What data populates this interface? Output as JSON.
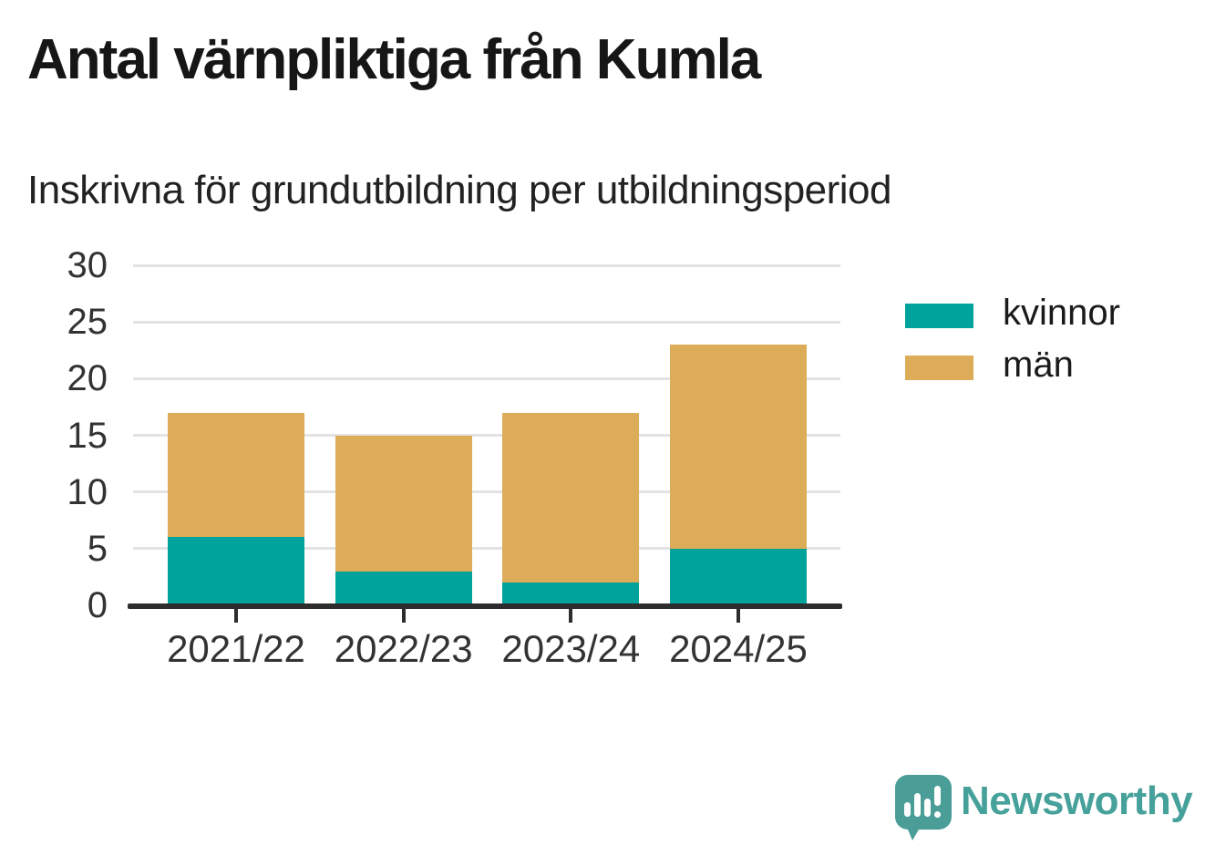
{
  "title": "Antal värnpliktiga från Kumla",
  "subtitle": "Inskrivna för grundutbildning per utbildningsperiod",
  "chart_data": {
    "type": "bar",
    "stacked": true,
    "title": "Antal värnpliktiga från Kumla",
    "subtitle": "Inskrivna för grundutbildning per utbildningsperiod",
    "categories": [
      "2021/22",
      "2022/23",
      "2023/24",
      "2024/25"
    ],
    "series": [
      {
        "name": "kvinnor",
        "color": "#00a39b",
        "values": [
          6,
          3,
          2,
          5
        ]
      },
      {
        "name": "män",
        "color": "#dcac58",
        "values": [
          11,
          12,
          15,
          18
        ]
      }
    ],
    "totals": [
      17,
      15,
      17,
      23
    ],
    "xlabel": "",
    "ylabel": "",
    "ylim": [
      0,
      30
    ],
    "yticks": [
      0,
      5,
      10,
      15,
      20,
      25,
      30
    ],
    "grid": true,
    "legend_position": "right"
  },
  "branding": {
    "name": "Newsworthy",
    "logo_icon": "bar-chart-speech-bubble-icon",
    "color": "#45a19a",
    "icon_color": "#4b9e98"
  },
  "colors": {
    "kvinnor": "#00a39b",
    "man": "#dcac58",
    "axis": "#2d2d2d",
    "grid": "#e3e3e3",
    "text": "#161616",
    "tick_text": "#333333"
  }
}
